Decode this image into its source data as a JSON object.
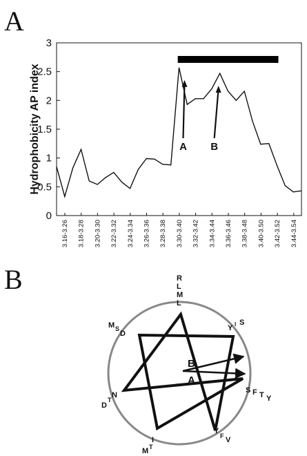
{
  "panel_a": {
    "label": "A",
    "chart_data": {
      "type": "line",
      "ylabel": "Hydrophobicity AP index",
      "xlabel": "",
      "title": "",
      "ylim": [
        0,
        3
      ],
      "yticks": [
        "0",
        "0.5",
        "1",
        "1.5",
        "2",
        "2.5",
        "3"
      ],
      "x_tick_labels": [
        "3.16-3.26",
        "3.18-3.28",
        "3.20-3.30",
        "3.22-3.32",
        "3.24-3.34",
        "3.26-3.36",
        "3.28-3.38",
        "3.30-3.40",
        "3.32-3.42",
        "3.34-3.44",
        "3.36-3.46",
        "3.38-3.48",
        "3.40-3.50",
        "3.42-3.52",
        "3.44-3.54"
      ],
      "values": [
        0.85,
        0.33,
        0.83,
        1.15,
        0.6,
        0.54,
        0.66,
        0.75,
        0.58,
        0.47,
        0.8,
        0.99,
        0.98,
        0.89,
        0.88,
        2.57,
        1.93,
        2.03,
        2.03,
        2.2,
        2.47,
        2.16,
        2.0,
        2.16,
        1.64,
        1.24,
        1.25,
        0.87,
        0.52,
        0.41,
        0.43
      ],
      "bar_start_index": 14,
      "bar_end_index": 27,
      "annotations": [
        {
          "text": "A",
          "point_index": 15
        },
        {
          "text": "B",
          "point_index": 20
        }
      ]
    }
  },
  "panel_b": {
    "label": "B",
    "arrow_labels": [
      "B",
      "A"
    ],
    "residue_groups": [
      {
        "letters": [
          "R",
          "L",
          "M",
          "L"
        ],
        "stack": true
      },
      {
        "letters": [
          "Y",
          "I",
          "S"
        ]
      },
      {
        "letters": [
          "S",
          "F",
          "T",
          "Y"
        ]
      },
      {
        "letters": [
          "Y",
          "F",
          "V"
        ]
      },
      {
        "letters": [
          "M",
          "T",
          "I"
        ]
      },
      {
        "letters": [
          "D",
          "T",
          "N"
        ]
      },
      {
        "letters": [
          "M",
          "S",
          "D"
        ]
      }
    ]
  }
}
